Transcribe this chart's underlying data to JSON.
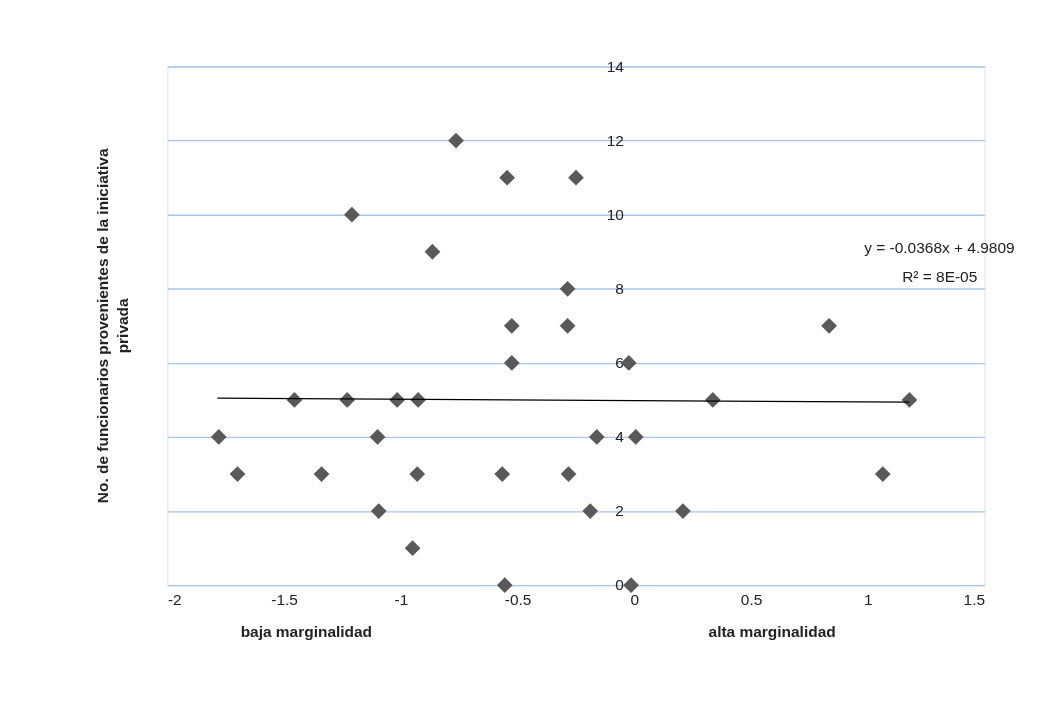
{
  "chart_data": {
    "type": "scatter",
    "ylabel": "No. de funcionarios provenientes de la iniciativa privada",
    "xlim": [
      -2,
      1.5
    ],
    "xticks": [
      -2,
      -1.5,
      -1,
      -0.5,
      0,
      0.5,
      1,
      1.5
    ],
    "ylim": [
      0,
      14
    ],
    "yticks": [
      0,
      2,
      4,
      6,
      8,
      10,
      12,
      14
    ],
    "grid": "y",
    "marker": "diamond",
    "annotations": [
      "baja marginalidad",
      "alta marginalidad",
      "y = -0.0368x + 4.9809",
      "R² = 8E-05"
    ],
    "series": [
      {
        "color": "#595959",
        "x": [
          -0.764,
          -0.545,
          -0.25,
          -1.21,
          -0.865,
          -0.286,
          -0.525,
          -0.286,
          -0.525,
          -1.456,
          -1.23,
          -1.016,
          -0.926,
          -1.78,
          -1.1,
          -1.7,
          -1.34,
          -0.93,
          -0.566,
          -0.282,
          -1.095,
          -0.95,
          -0.555,
          -0.024,
          0.336,
          1.178,
          0.834,
          -0.161,
          0.006,
          1.064,
          -0.189,
          0.208,
          -0.014
        ],
        "values": [
          12,
          11,
          11,
          10,
          9,
          8,
          7,
          7,
          6,
          5,
          5,
          5,
          5,
          4,
          4,
          3,
          3,
          3,
          3,
          3,
          2,
          1,
          0,
          6,
          5,
          5,
          7,
          4,
          4,
          3,
          2,
          2,
          0
        ]
      },
      {
        "type": "line",
        "color": "#000000",
        "line_style": "solid",
        "marker": "none",
        "x": [
          -1.786,
          1.178
        ],
        "values": [
          5.05,
          4.94
        ]
      }
    ]
  }
}
